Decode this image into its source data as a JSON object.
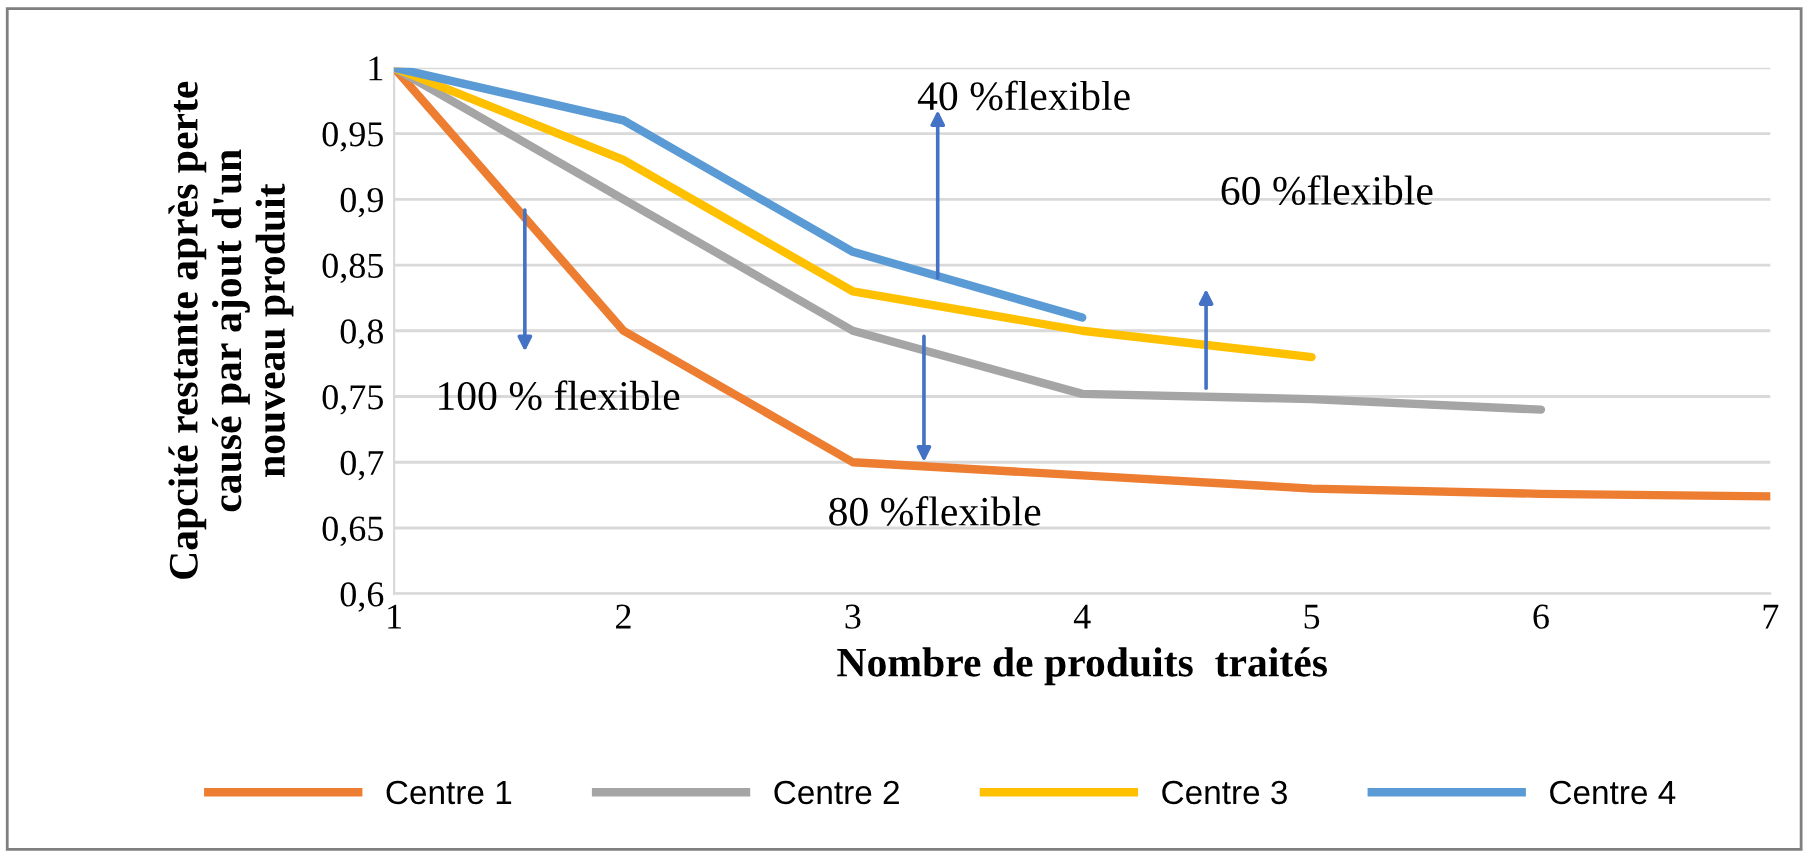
{
  "chart_data": {
    "type": "line",
    "xlabel": "Nombre de produits  traités",
    "ylabel": "Capcité restante après perte\ncausé par ajout d'un\nnouveau produit",
    "x": [
      1,
      2,
      3,
      4,
      5,
      6,
      7
    ],
    "series": [
      {
        "name": "Centre 1",
        "color": "#ed7d31",
        "values": [
          1,
          0.8,
          0.7,
          0.69,
          0.68,
          0.676,
          0.674
        ]
      },
      {
        "name": "Centre 2",
        "color": "#a5a5a5",
        "values": [
          1,
          0.9,
          0.8,
          0.752,
          0.748,
          0.74,
          null
        ]
      },
      {
        "name": "Centre 3",
        "color": "#ffc000",
        "values": [
          1,
          0.93,
          0.83,
          0.8,
          0.78,
          null,
          null
        ]
      },
      {
        "name": "Centre 4",
        "color": "#5b9bd5",
        "values": [
          1,
          0.96,
          0.86,
          0.81,
          null,
          null,
          null
        ]
      }
    ],
    "xlim": [
      1,
      7
    ],
    "xticks": [
      1,
      2,
      3,
      4,
      5,
      6,
      7
    ],
    "ylim": [
      0.6,
      1
    ],
    "yticks": [
      {
        "value": 0.6,
        "label": "0,6"
      },
      {
        "value": 0.65,
        "label": "0,65"
      },
      {
        "value": 0.7,
        "label": "0,7"
      },
      {
        "value": 0.75,
        "label": "0,75"
      },
      {
        "value": 0.8,
        "label": "0,8"
      },
      {
        "value": 0.85,
        "label": "0,85"
      },
      {
        "value": 0.9,
        "label": "0,9"
      },
      {
        "value": 0.95,
        "label": "0,95"
      },
      {
        "value": 1,
        "label": "1"
      }
    ],
    "annotations": [
      "40 %flexible",
      "60 %flexible",
      "100 % flexible",
      "80 %flexible"
    ],
    "grid": "y",
    "legend": "bottom",
    "marker": "none",
    "line_style": "solid"
  }
}
